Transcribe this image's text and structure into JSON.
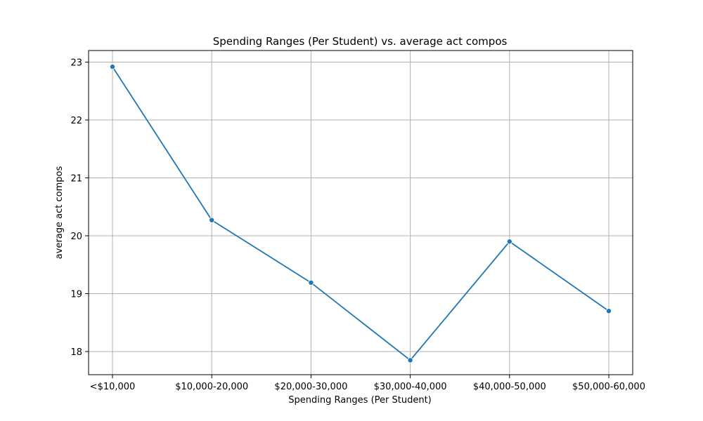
{
  "chart_data": {
    "type": "line",
    "title": "Spending Ranges (Per Student) vs. average act compos",
    "xlabel": "Spending Ranges (Per Student)",
    "ylabel": "average act compos",
    "categories": [
      "<$10,000",
      "$10,000-20,000",
      "$20,000-30,000",
      "$30,000-40,000",
      "$40,000-50,000",
      "$50,000-60,000"
    ],
    "series": [
      {
        "values": [
          22.92,
          20.27,
          19.19,
          17.85,
          19.9,
          18.7
        ]
      }
    ],
    "ylim": [
      17.6,
      23.2
    ],
    "yticks": [
      18,
      19,
      20,
      21,
      22,
      23
    ],
    "grid": true,
    "marker": "circle",
    "color": "#1f77b4"
  }
}
